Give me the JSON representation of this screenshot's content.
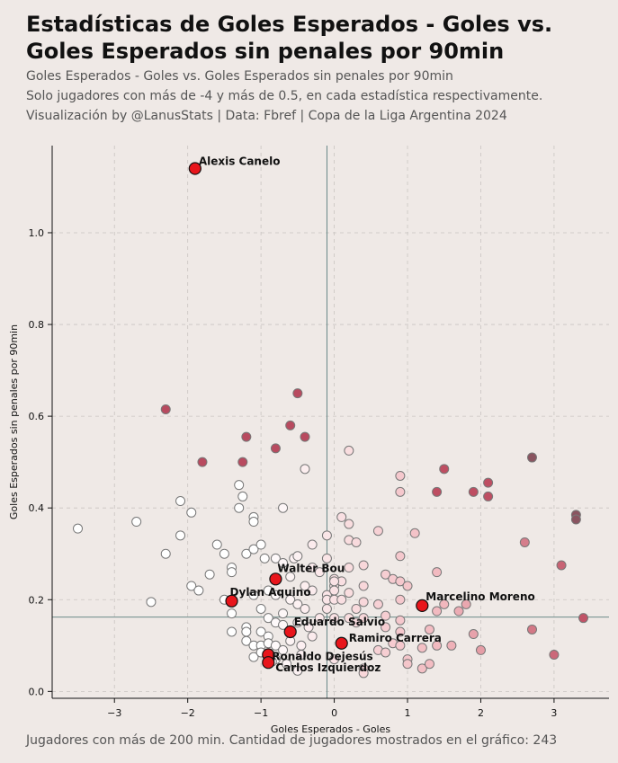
{
  "header": {
    "title": "Estadísticas de Goles Esperados - Goles vs. Goles Esperados sin penales por 90min",
    "subtitle_1": "Goles Esperados - Goles vs. Goles Esperados sin penales por 90min",
    "subtitle_2": "Solo jugadores con más de -4 y más de 0.5, en cada estadística respectivamente.",
    "subtitle_3": "Visualización by @LanusStats | Data: Fbref | Copa de la Liga Argentina 2024"
  },
  "footer": {
    "note": "Jugadores con más de 200 min. Cantidad de jugadores mostrados en el gráfico: 243"
  },
  "chart_data": {
    "type": "scatter",
    "xlabel": "Goles Esperados - Goles",
    "ylabel": "Goles Esperados sin penales por 90min",
    "xlim": [
      -3.85,
      3.75
    ],
    "ylim": [
      -0.015,
      1.19
    ],
    "xticks": [
      -3,
      -2,
      -1,
      0,
      1,
      2,
      3
    ],
    "xtick_labels": [
      "−3",
      "−2",
      "−1",
      "0",
      "1",
      "2",
      "3"
    ],
    "yticks": [
      0.0,
      0.2,
      0.4,
      0.6,
      0.8,
      1.0
    ],
    "ytick_labels": [
      "0.0",
      "0.2",
      "0.4",
      "0.6",
      "0.8",
      "1.0"
    ],
    "grid": true,
    "reference_lines": {
      "x": -0.1,
      "y": 0.162
    },
    "colors": {
      "background": "#efe9e6",
      "highlight": "#e8151b",
      "high_y": "#b84a5f",
      "top_right": "#8a5460",
      "reference_line": "#5a7d7c"
    },
    "highlighted": [
      {
        "name": "Alexis Canelo",
        "x": -1.9,
        "y": 1.14
      },
      {
        "name": "Walter Bou",
        "x": -0.8,
        "y": 0.245
      },
      {
        "name": "Dylan Aquino",
        "x": -1.4,
        "y": 0.197
      },
      {
        "name": "Marcelino Moreno",
        "x": 1.2,
        "y": 0.187
      },
      {
        "name": "Eduardo Salvio",
        "x": -0.6,
        "y": 0.13
      },
      {
        "name": "Ramiro Carrera",
        "x": 0.1,
        "y": 0.105
      },
      {
        "name": "Ronaldo Dejesús",
        "x": -0.9,
        "y": 0.08
      },
      {
        "name": "Carlos Izquierdoz",
        "x": -0.9,
        "y": 0.063
      }
    ],
    "points": [
      [
        -3.5,
        0.355
      ],
      [
        -2.7,
        0.37
      ],
      [
        -2.5,
        0.195
      ],
      [
        -2.3,
        0.3
      ],
      [
        -2.1,
        0.415
      ],
      [
        -2.1,
        0.34
      ],
      [
        -1.95,
        0.39
      ],
      [
        -1.95,
        0.23
      ],
      [
        -1.85,
        0.22
      ],
      [
        -1.7,
        0.255
      ],
      [
        -1.6,
        0.32
      ],
      [
        -1.5,
        0.3
      ],
      [
        -1.5,
        0.2
      ],
      [
        -1.4,
        0.27
      ],
      [
        -1.4,
        0.26
      ],
      [
        -1.4,
        0.17
      ],
      [
        -1.4,
        0.13
      ],
      [
        -1.3,
        0.45
      ],
      [
        -1.3,
        0.4
      ],
      [
        -1.25,
        0.5
      ],
      [
        -1.25,
        0.425
      ],
      [
        -1.2,
        0.3
      ],
      [
        -1.2,
        0.14
      ],
      [
        -1.2,
        0.13
      ],
      [
        -1.2,
        0.11
      ],
      [
        -1.1,
        0.38
      ],
      [
        -1.1,
        0.37
      ],
      [
        -1.1,
        0.31
      ],
      [
        -1.1,
        0.21
      ],
      [
        -1.1,
        0.1
      ],
      [
        -1.1,
        0.075
      ],
      [
        -1.0,
        0.32
      ],
      [
        -1.0,
        0.18
      ],
      [
        -1.0,
        0.13
      ],
      [
        -1.0,
        0.1
      ],
      [
        -1.0,
        0.085
      ],
      [
        -0.95,
        0.29
      ],
      [
        -0.9,
        0.22
      ],
      [
        -0.9,
        0.16
      ],
      [
        -0.9,
        0.12
      ],
      [
        -0.9,
        0.105
      ],
      [
        -0.8,
        0.53
      ],
      [
        -0.8,
        0.29
      ],
      [
        -0.8,
        0.21
      ],
      [
        -0.8,
        0.15
      ],
      [
        -0.8,
        0.1
      ],
      [
        -0.8,
        0.07
      ],
      [
        -0.7,
        0.4
      ],
      [
        -0.7,
        0.28
      ],
      [
        -0.7,
        0.17
      ],
      [
        -0.7,
        0.145
      ],
      [
        -0.7,
        0.09
      ],
      [
        -0.65,
        0.06
      ],
      [
        -0.6,
        0.58
      ],
      [
        -0.6,
        0.25
      ],
      [
        -0.6,
        0.2
      ],
      [
        -0.6,
        0.13
      ],
      [
        -0.6,
        0.11
      ],
      [
        -0.55,
        0.29
      ],
      [
        -0.5,
        0.65
      ],
      [
        -0.5,
        0.19
      ],
      [
        -0.5,
        0.15
      ],
      [
        -0.45,
        0.1
      ],
      [
        -0.45,
        0.08
      ],
      [
        -0.4,
        0.555
      ],
      [
        -0.4,
        0.485
      ],
      [
        -0.4,
        0.23
      ],
      [
        -0.4,
        0.18
      ],
      [
        -0.35,
        0.14
      ],
      [
        -0.3,
        0.32
      ],
      [
        -0.3,
        0.27
      ],
      [
        -0.3,
        0.22
      ],
      [
        -0.3,
        0.12
      ],
      [
        -0.2,
        0.26
      ],
      [
        -0.2,
        0.16
      ],
      [
        -0.1,
        0.34
      ],
      [
        -0.1,
        0.29
      ],
      [
        -0.1,
        0.21
      ],
      [
        -0.1,
        0.2
      ],
      [
        -0.1,
        0.18
      ],
      [
        0.0,
        0.245
      ],
      [
        0.0,
        0.23
      ],
      [
        0.0,
        0.22
      ],
      [
        0.0,
        0.2
      ],
      [
        0.0,
        0.16
      ],
      [
        0.0,
        0.07
      ],
      [
        0.1,
        0.38
      ],
      [
        0.1,
        0.24
      ],
      [
        0.1,
        0.2
      ],
      [
        0.2,
        0.525
      ],
      [
        0.2,
        0.365
      ],
      [
        0.2,
        0.33
      ],
      [
        0.2,
        0.27
      ],
      [
        0.2,
        0.215
      ],
      [
        0.2,
        0.16
      ],
      [
        0.3,
        0.325
      ],
      [
        0.3,
        0.18
      ],
      [
        0.3,
        0.15
      ],
      [
        0.4,
        0.275
      ],
      [
        0.4,
        0.23
      ],
      [
        0.4,
        0.195
      ],
      [
        0.4,
        0.16
      ],
      [
        0.4,
        0.05
      ],
      [
        0.6,
        0.35
      ],
      [
        0.6,
        0.19
      ],
      [
        0.6,
        0.09
      ],
      [
        0.7,
        0.255
      ],
      [
        0.7,
        0.165
      ],
      [
        0.7,
        0.14
      ],
      [
        0.7,
        0.085
      ],
      [
        0.8,
        0.245
      ],
      [
        0.8,
        0.105
      ],
      [
        0.9,
        0.47
      ],
      [
        0.9,
        0.435
      ],
      [
        0.9,
        0.295
      ],
      [
        0.9,
        0.24
      ],
      [
        0.9,
        0.2
      ],
      [
        0.9,
        0.155
      ],
      [
        0.9,
        0.13
      ],
      [
        0.9,
        0.1
      ],
      [
        1.0,
        0.23
      ],
      [
        1.0,
        0.07
      ],
      [
        1.0,
        0.06
      ],
      [
        1.1,
        0.345
      ],
      [
        1.2,
        0.095
      ],
      [
        1.2,
        0.05
      ],
      [
        1.3,
        0.135
      ],
      [
        1.3,
        0.06
      ],
      [
        1.4,
        0.435
      ],
      [
        1.4,
        0.26
      ],
      [
        1.4,
        0.175
      ],
      [
        1.4,
        0.1
      ],
      [
        1.5,
        0.485
      ],
      [
        1.5,
        0.19
      ],
      [
        1.6,
        0.1
      ],
      [
        1.7,
        0.175
      ],
      [
        1.8,
        0.19
      ],
      [
        1.9,
        0.435
      ],
      [
        1.9,
        0.125
      ],
      [
        2.0,
        0.09
      ],
      [
        2.1,
        0.455
      ],
      [
        2.1,
        0.425
      ],
      [
        2.6,
        0.325
      ],
      [
        2.7,
        0.51
      ],
      [
        2.7,
        0.135
      ],
      [
        3.0,
        0.08
      ],
      [
        3.1,
        0.275
      ],
      [
        3.3,
        0.385
      ],
      [
        3.3,
        0.375
      ],
      [
        3.4,
        0.16
      ],
      [
        -2.3,
        0.615
      ],
      [
        -1.8,
        0.5
      ],
      [
        -1.2,
        0.555
      ],
      [
        -0.5,
        0.295
      ],
      [
        0.0,
        0.24
      ],
      [
        -0.85,
        0.065
      ],
      [
        -0.5,
        0.045
      ],
      [
        0.4,
        0.04
      ]
    ]
  }
}
